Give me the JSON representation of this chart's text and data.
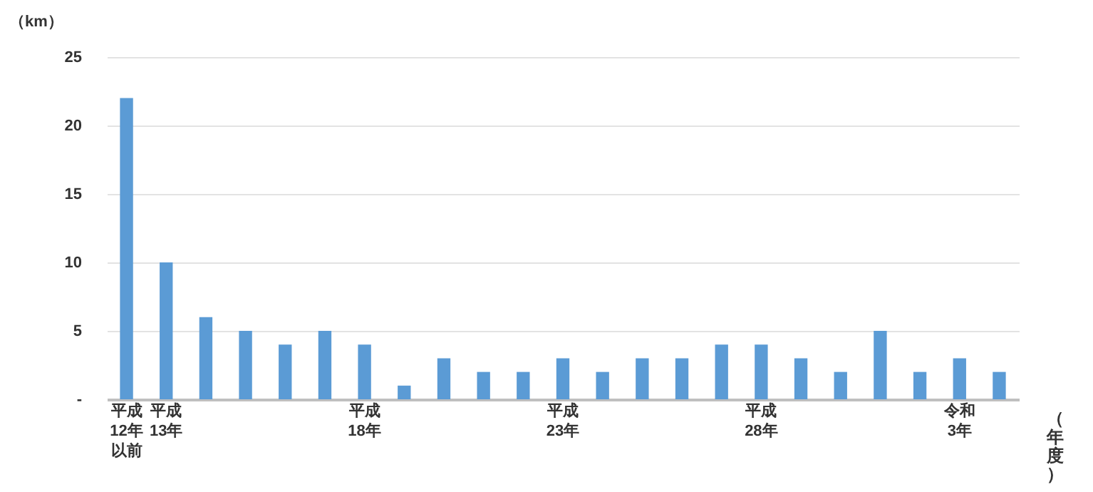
{
  "chart_data": {
    "type": "bar",
    "ylabel": "（km）",
    "xlabel": "（年度）",
    "categories": [
      "平成12年以前",
      "平成13年",
      null,
      null,
      null,
      null,
      "平成18年",
      null,
      null,
      null,
      null,
      "平成23年",
      null,
      null,
      null,
      null,
      "平成28年",
      null,
      null,
      null,
      null,
      "令和3年",
      null
    ],
    "values": [
      22,
      10,
      6,
      5,
      4,
      5,
      4,
      1,
      3,
      2,
      2,
      3,
      2,
      3,
      3,
      4,
      4,
      3,
      2,
      5,
      2,
      3,
      2
    ],
    "color": "#5b9bd5",
    "ylim": [
      0,
      25
    ],
    "yticks": [
      {
        "value": 0,
        "label": "-"
      },
      5,
      10,
      15,
      20,
      25
    ],
    "grid": "y"
  }
}
